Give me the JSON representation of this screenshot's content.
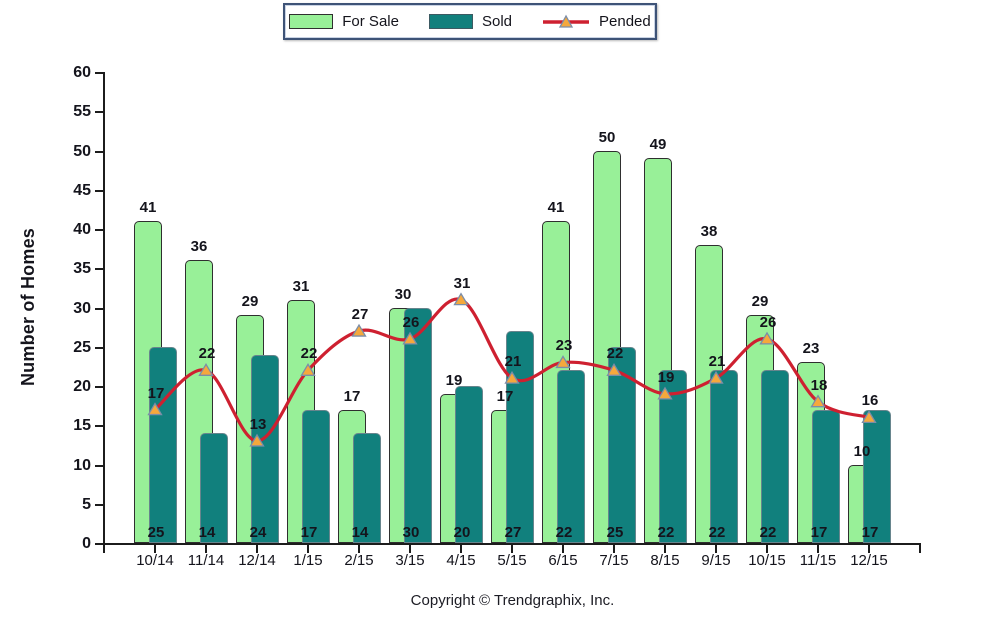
{
  "chart_data": {
    "type": "bar",
    "subtype": "grouped-overlap-bars-with-line",
    "title": "",
    "xlabel": "",
    "ylabel": "Number of Homes",
    "ylim": [
      0,
      60
    ],
    "ytick_step": 5,
    "grid": false,
    "legend_position": "top-center",
    "categories": [
      "10/14",
      "11/14",
      "12/14",
      "1/15",
      "2/15",
      "3/15",
      "4/15",
      "5/15",
      "6/15",
      "7/15",
      "8/15",
      "9/15",
      "10/15",
      "11/15",
      "12/15"
    ],
    "series": [
      {
        "name": "For Sale",
        "type": "bar",
        "color": "#98F098",
        "values": [
          41,
          36,
          29,
          31,
          17,
          30,
          19,
          17,
          41,
          50,
          49,
          38,
          29,
          23,
          10
        ]
      },
      {
        "name": "Sold",
        "type": "bar",
        "color": "#11807D",
        "values": [
          25,
          14,
          24,
          17,
          14,
          30,
          20,
          27,
          22,
          25,
          22,
          22,
          22,
          17,
          17
        ]
      },
      {
        "name": "Pended",
        "type": "line",
        "color": "#CE2030",
        "marker": "triangle",
        "marker_color": "#F5A83C",
        "values": [
          17,
          22,
          13,
          22,
          27,
          26,
          31,
          21,
          23,
          22,
          19,
          21,
          26,
          18,
          16
        ]
      }
    ],
    "copyright": "Copyright © Trendgraphix, Inc."
  }
}
